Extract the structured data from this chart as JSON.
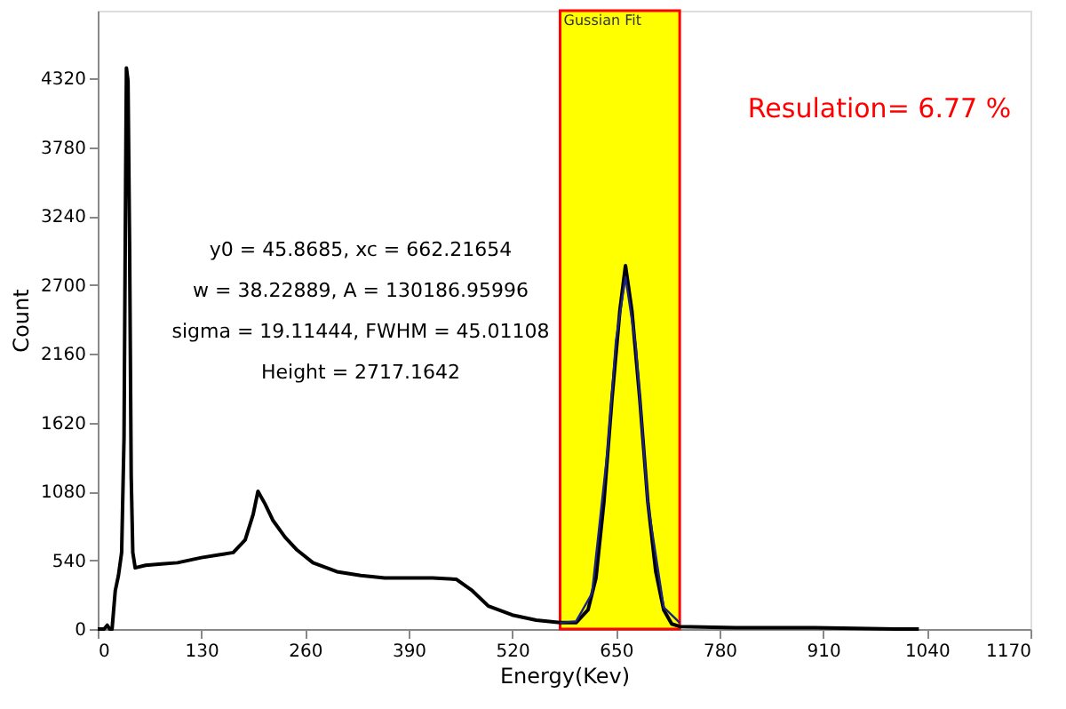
{
  "chart_data": {
    "type": "line",
    "xlabel": "Energy(Kev)",
    "ylabel": "Count",
    "xlim": [
      0,
      1170
    ],
    "ylim": [
      0,
      4850
    ],
    "xticks": [
      0,
      130,
      260,
      390,
      520,
      650,
      780,
      910,
      1040,
      1170
    ],
    "yticks": [
      0,
      540,
      1080,
      1620,
      2160,
      2700,
      3240,
      3780,
      4320
    ],
    "grid": false,
    "marker": "none",
    "line_style": "solid",
    "series": [
      {
        "color": "#000000",
        "x": [
          0,
          8,
          12,
          15,
          18,
          22,
          26,
          30,
          33,
          35,
          36,
          38,
          40,
          42,
          44,
          47,
          60,
          80,
          100,
          130,
          150,
          170,
          185,
          195,
          201,
          210,
          220,
          235,
          250,
          270,
          300,
          330,
          360,
          390,
          420,
          450,
          470,
          490,
          520,
          550,
          580,
          600,
          615,
          625,
          635,
          645,
          655,
          662,
          670,
          680,
          690,
          700,
          710,
          720,
          730,
          800,
          900,
          1000,
          1030
        ],
        "values": [
          0,
          0,
          30,
          0,
          0,
          300,
          420,
          600,
          1500,
          3500,
          4400,
          4300,
          3000,
          1200,
          600,
          480,
          500,
          510,
          520,
          560,
          580,
          600,
          700,
          900,
          1080,
          980,
          850,
          720,
          620,
          520,
          450,
          420,
          400,
          400,
          400,
          390,
          300,
          180,
          110,
          70,
          50,
          50,
          150,
          400,
          1000,
          1800,
          2500,
          2850,
          2500,
          1800,
          1000,
          450,
          150,
          40,
          20,
          10,
          10,
          0,
          0
        ]
      },
      {
        "color": "#1a237e",
        "x": [
          580,
          600,
          620,
          640,
          650,
          662,
          675,
          690,
          710,
          730
        ],
        "values": [
          50,
          60,
          280,
          1430,
          2260,
          2760,
          2220,
          990,
          170,
          50
        ]
      }
    ],
    "bands": [
      {
        "axis": "x",
        "from": 580,
        "to": 730,
        "label": "Gussian Fit",
        "color": "#ffff00"
      }
    ],
    "annotations": [
      "y0 = 45.8685, xc = 662.21654",
      "w = 38.22889, A = 130186.95996",
      "sigma = 19.11444, FWHM = 45.01108",
      "Height = 2717.1642",
      "Resulation= 6.77 %"
    ]
  }
}
